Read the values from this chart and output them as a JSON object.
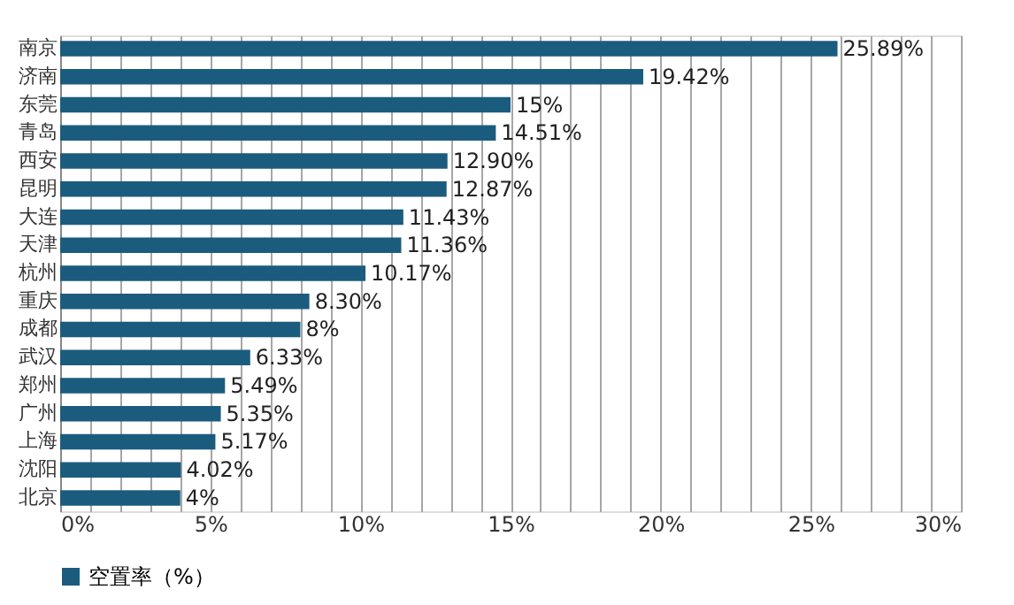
{
  "chart_data": {
    "type": "bar",
    "orientation": "horizontal",
    "categories": [
      "南京",
      "济南",
      "东莞",
      "青岛",
      "西安",
      "昆明",
      "大连",
      "天津",
      "杭州",
      "重庆",
      "成都",
      "武汉",
      "郑州",
      "广州",
      "上海",
      "沈阳",
      "北京"
    ],
    "series": [
      {
        "name": "空置率（%）",
        "color": "#1b5c7e",
        "values": [
          25.89,
          19.42,
          15,
          14.51,
          12.9,
          12.87,
          11.43,
          11.36,
          10.17,
          8.3,
          8,
          6.33,
          5.49,
          5.35,
          5.17,
          4.02,
          4
        ],
        "value_labels": [
          "25.89%",
          "19.42%",
          "15%",
          "14.51%",
          "12.90%",
          "12.87%",
          "11.43%",
          "11.36%",
          "10.17%",
          "8.30%",
          "8%",
          "6.33%",
          "5.49%",
          "5.35%",
          "5.17%",
          "4.02%",
          "4%"
        ]
      }
    ],
    "xlim": [
      0,
      30
    ],
    "xticks": [
      {
        "value": 0,
        "label": "0%"
      },
      {
        "value": 1,
        "label": null
      },
      {
        "value": 2,
        "label": null
      },
      {
        "value": 3,
        "label": null
      },
      {
        "value": 4,
        "label": null
      },
      {
        "value": 5,
        "label": "5%"
      },
      {
        "value": 6,
        "label": null
      },
      {
        "value": 7,
        "label": null
      },
      {
        "value": 8,
        "label": null
      },
      {
        "value": 9,
        "label": null
      },
      {
        "value": 10,
        "label": "10%"
      },
      {
        "value": 11,
        "label": null
      },
      {
        "value": 12,
        "label": null
      },
      {
        "value": 13,
        "label": null
      },
      {
        "value": 14,
        "label": null
      },
      {
        "value": 15,
        "label": "15%"
      },
      {
        "value": 16,
        "label": null
      },
      {
        "value": 17,
        "label": null
      },
      {
        "value": 18,
        "label": null
      },
      {
        "value": 19,
        "label": null
      },
      {
        "value": 20,
        "label": "20%"
      },
      {
        "value": 21,
        "label": null
      },
      {
        "value": 22,
        "label": null
      },
      {
        "value": 23,
        "label": null
      },
      {
        "value": 24,
        "label": null
      },
      {
        "value": 25,
        "label": "25%"
      },
      {
        "value": 26,
        "label": null
      },
      {
        "value": 27,
        "label": null
      },
      {
        "value": 28,
        "label": null
      },
      {
        "value": 29,
        "label": null
      },
      {
        "value": 30,
        "label": "30%"
      }
    ],
    "grid": "x",
    "legend": "bottom"
  }
}
